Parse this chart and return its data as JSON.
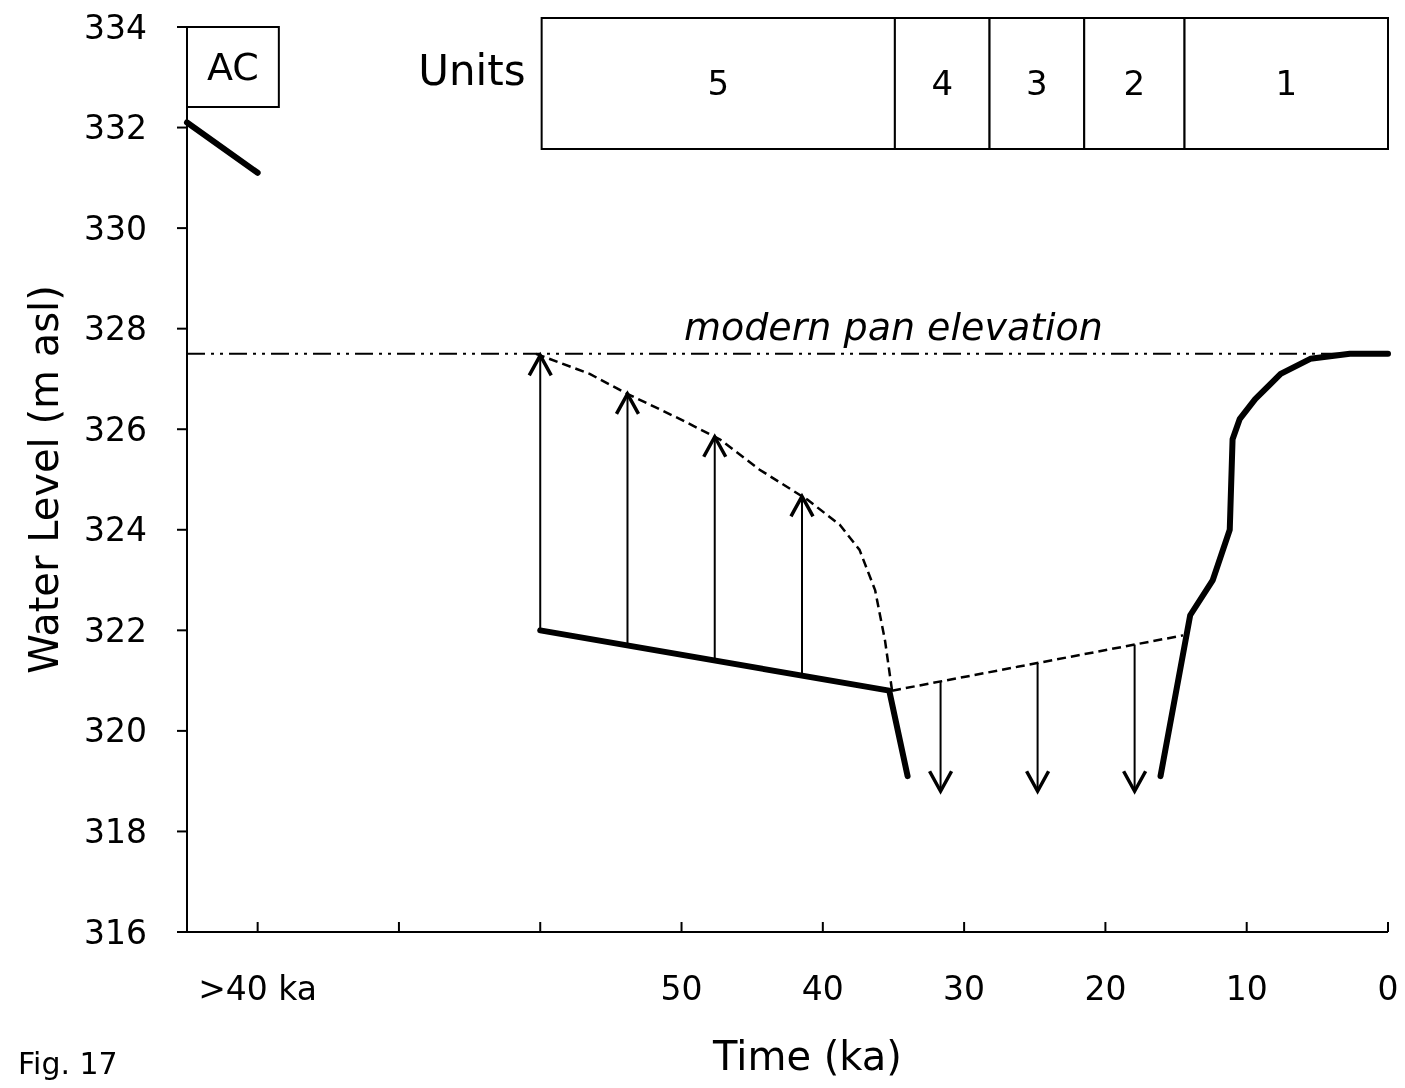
{
  "chart_data": {
    "type": "line",
    "xlabel": "Time (ka)",
    "ylabel": "Water Level (m asl)",
    "xlim": [
      85,
      0
    ],
    "xticks": [
      {
        "value": 80,
        "label": ">40 ka"
      },
      {
        "value": 70,
        "label": null
      },
      {
        "value": 60,
        "label": null
      },
      50,
      40,
      30,
      20,
      10,
      0
    ],
    "ylim": [
      316,
      334
    ],
    "yticks": [
      316,
      318,
      320,
      322,
      324,
      326,
      328,
      330,
      332,
      334
    ],
    "grid": false,
    "marker": "none",
    "series": [
      {
        "color": "#000000",
        "line_style": "solid",
        "x": [
          85,
          80
        ],
        "values": [
          332.1,
          331.1
        ]
      },
      {
        "color": "#000000",
        "line_style": "solid",
        "x": [
          60,
          35.3,
          34
        ],
        "values": [
          322,
          320.8,
          319.1
        ]
      },
      {
        "color": "#000000",
        "line_style": "dashed",
        "x": [
          60.3,
          56.5,
          53.8,
          50.1,
          47.3,
          44.5,
          41.1,
          38.8,
          37.4,
          36.3,
          35.6,
          35.1
        ],
        "values": [
          327.5,
          327.1,
          326.7,
          326.2,
          325.8,
          325.2,
          324.6,
          324.1,
          323.6,
          322.8,
          321.8,
          320.8
        ]
      },
      {
        "color": "#000000",
        "line_style": "dashed",
        "x": [
          35.1,
          14.5
        ],
        "values": [
          320.8,
          321.9
        ]
      },
      {
        "color": "#000000",
        "line_style": "solid",
        "x": [
          16.1,
          14,
          12.4,
          11.2,
          11,
          10.5,
          9.4,
          7.6,
          5.5,
          2.7,
          0
        ],
        "values": [
          319.1,
          322.3,
          323,
          324,
          325.8,
          326.2,
          326.6,
          327.1,
          327.4,
          327.5,
          327.5
        ]
      }
    ],
    "ref_lines": [
      {
        "axis": "y",
        "value": 327.5,
        "label": "modern pan elevation",
        "line_style": "dashdot",
        "color": "#000000"
      }
    ],
    "bands": [
      {
        "axis": "x",
        "from": 85,
        "to": 78.5,
        "label": "AC",
        "color": "#ffffff"
      },
      {
        "axis": "x",
        "from": 59.9,
        "to": 34.9,
        "label": "5",
        "color": "#ffffff"
      },
      {
        "axis": "x",
        "from": 34.9,
        "to": 28.2,
        "label": "4",
        "color": "#ffffff"
      },
      {
        "axis": "x",
        "from": 28.2,
        "to": 21.5,
        "label": "3",
        "color": "#ffffff"
      },
      {
        "axis": "x",
        "from": 21.5,
        "to": 14.4,
        "label": "2",
        "color": "#ffffff"
      },
      {
        "axis": "x",
        "from": 14.4,
        "to": 0,
        "label": "1",
        "color": "#ffffff"
      }
    ],
    "annotations": [
      "Units",
      "Fig. 17"
    ]
  }
}
